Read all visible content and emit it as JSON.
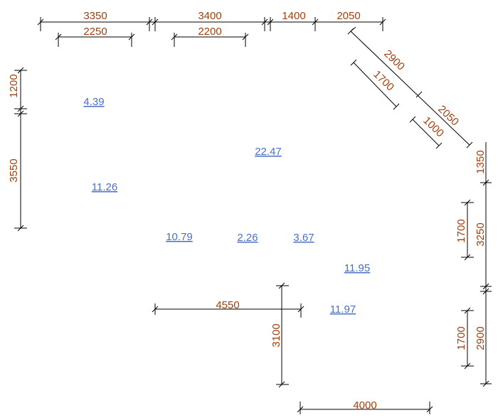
{
  "colors": {
    "dimension_text": "#a0400d",
    "area_text": "#4a6fc6",
    "lines": "#000000"
  },
  "dimensions": {
    "top_3350": "3350",
    "top_3400": "3400",
    "top_1400": "1400",
    "top_2050": "2050",
    "top_2250": "2250",
    "top_2200": "2200",
    "diag_2900": "2900",
    "diag_1700": "1700",
    "diag_2050": "2050",
    "diag_1000": "1000",
    "left_1200": "1200",
    "left_3550": "3550",
    "right_1350": "1350",
    "right_1700_upper": "1700",
    "right_3250": "3250",
    "right_1700_lower": "1700",
    "right_2900": "2900",
    "mid_4550": "4550",
    "mid_3100": "3100",
    "bottom_4000": "4000"
  },
  "areas": {
    "a_4_39": "4.39",
    "a_22_47": "22.47",
    "a_11_26": "11.26",
    "a_10_79": "10.79",
    "a_2_26": "2.26",
    "a_3_67": "3.67",
    "a_11_95": "11.95",
    "a_11_97": "11.97"
  }
}
